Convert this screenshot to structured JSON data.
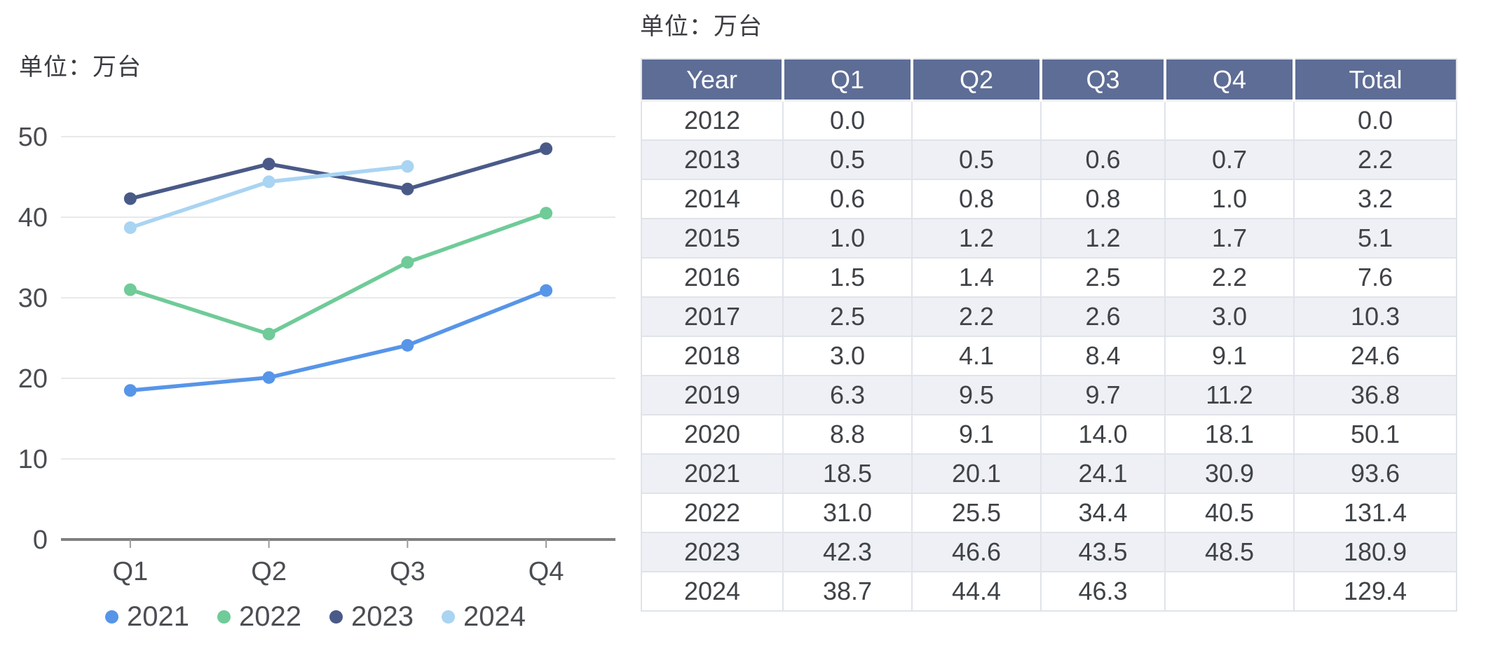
{
  "chart_data": {
    "type": "line",
    "unit_label": "单位：万台",
    "title": "",
    "xlabel": "",
    "ylabel": "",
    "categories": [
      "Q1",
      "Q2",
      "Q3",
      "Q4"
    ],
    "series": [
      {
        "name": "2021",
        "color": "#5795e8",
        "values": [
          18.5,
          20.1,
          24.1,
          30.9
        ]
      },
      {
        "name": "2022",
        "color": "#6fcb98",
        "values": [
          31.0,
          25.5,
          34.4,
          40.5
        ]
      },
      {
        "name": "2023",
        "color": "#4a5a88",
        "values": [
          42.3,
          46.6,
          43.5,
          48.5
        ]
      },
      {
        "name": "2024",
        "color": "#a9d4f2",
        "values": [
          38.7,
          44.4,
          46.3,
          null
        ]
      }
    ],
    "ylim": [
      0,
      55
    ],
    "yticks": [
      0,
      10,
      20,
      30,
      40,
      50
    ],
    "grid": true,
    "legend_position": "bottom",
    "grid_color": "#e9e9e9",
    "axis_color": "#7f7f7f",
    "tick_color": "#9a9a9a",
    "label_color": "#4a4d52"
  },
  "table": {
    "unit_label": "单位：万台",
    "columns": [
      "Year",
      "Q1",
      "Q2",
      "Q3",
      "Q4",
      "Total"
    ],
    "rows": [
      [
        "2012",
        "0.0",
        "",
        "",
        "",
        "0.0"
      ],
      [
        "2013",
        "0.5",
        "0.5",
        "0.6",
        "0.7",
        "2.2"
      ],
      [
        "2014",
        "0.6",
        "0.8",
        "0.8",
        "1.0",
        "3.2"
      ],
      [
        "2015",
        "1.0",
        "1.2",
        "1.2",
        "1.7",
        "5.1"
      ],
      [
        "2016",
        "1.5",
        "1.4",
        "2.5",
        "2.2",
        "7.6"
      ],
      [
        "2017",
        "2.5",
        "2.2",
        "2.6",
        "3.0",
        "10.3"
      ],
      [
        "2018",
        "3.0",
        "4.1",
        "8.4",
        "9.1",
        "24.6"
      ],
      [
        "2019",
        "6.3",
        "9.5",
        "9.7",
        "11.2",
        "36.8"
      ],
      [
        "2020",
        "8.8",
        "9.1",
        "14.0",
        "18.1",
        "50.1"
      ],
      [
        "2021",
        "18.5",
        "20.1",
        "24.1",
        "30.9",
        "93.6"
      ],
      [
        "2022",
        "31.0",
        "25.5",
        "34.4",
        "40.5",
        "131.4"
      ],
      [
        "2023",
        "42.3",
        "46.6",
        "43.5",
        "48.5",
        "180.9"
      ],
      [
        "2024",
        "38.7",
        "44.4",
        "46.3",
        "",
        "129.4"
      ]
    ],
    "colors": {
      "header_bg": "#5e6d96",
      "header_text": "#ffffff",
      "row_bg": "#ffffff",
      "row_alt_bg": "#eef0f5",
      "border": "#e0e3e9",
      "text": "#3f4347"
    }
  }
}
